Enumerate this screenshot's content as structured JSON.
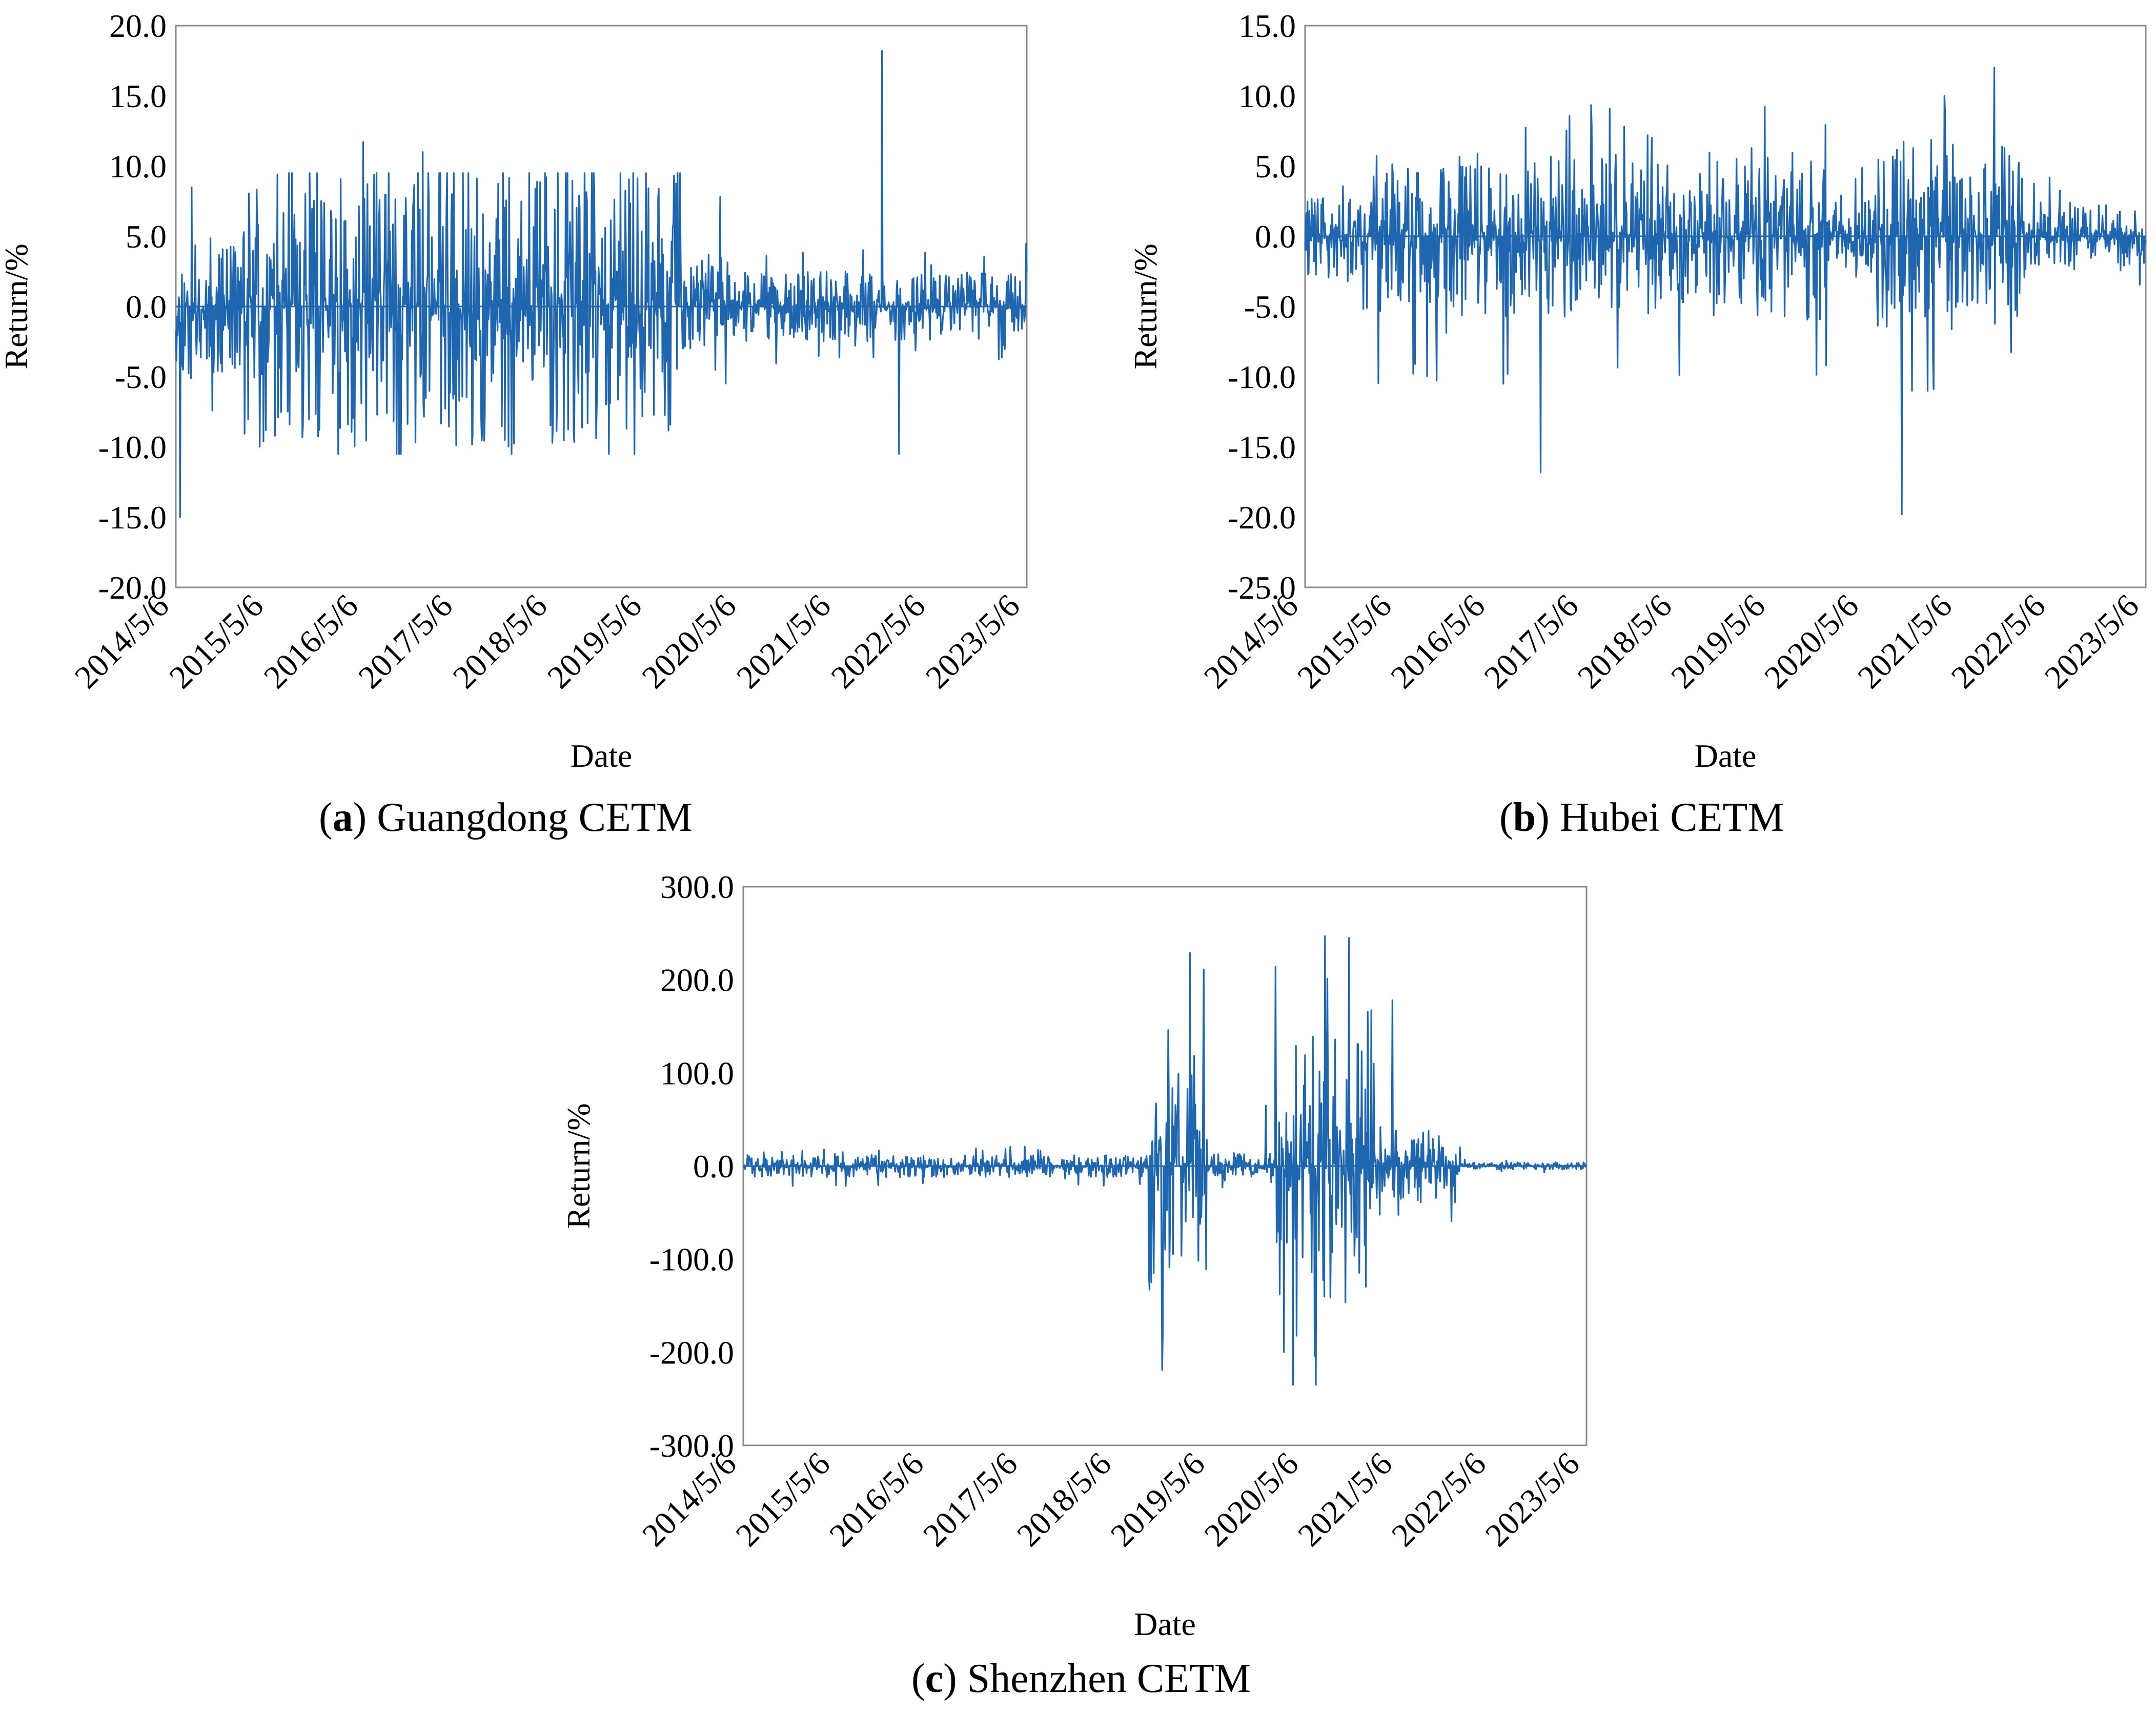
{
  "figure": {
    "panels_count": 3
  },
  "chart_data": [
    {
      "id": "a",
      "type": "line",
      "title": "Guangdong CETM",
      "caption_letter": "a",
      "xlabel": "Date",
      "ylabel": "Return/%",
      "ylim": [
        -20,
        20
      ],
      "yticks": [
        -20,
        -15,
        -10,
        -5,
        0,
        5,
        10,
        15,
        20
      ],
      "ytick_labels": [
        "-20.0",
        "-15.0",
        "-10.0",
        "-5.0",
        "0.0",
        "5.0",
        "10.0",
        "15.0",
        "20.0"
      ],
      "xticks": [
        "2014/5/6",
        "2015/5/6",
        "2016/5/6",
        "2017/5/6",
        "2018/5/6",
        "2019/5/6",
        "2020/5/6",
        "2021/5/6",
        "2022/5/6",
        "2023/5/6"
      ],
      "color": "#1f66b0",
      "series": [
        {
          "name": "Guangdong CETM return",
          "regimes": [
            {
              "from": 0.0,
              "to": 0.08,
              "amp": 5,
              "lo": -10.5,
              "hi": 9.5
            },
            {
              "from": 0.08,
              "to": 0.6,
              "amp": 10,
              "lo": -10.5,
              "hi": 9.5
            },
            {
              "from": 0.6,
              "to": 0.65,
              "amp": 3.5,
              "lo": -6,
              "hi": 6
            },
            {
              "from": 0.65,
              "to": 1.0,
              "amp": 2.5,
              "lo": -6,
              "hi": 4.5
            }
          ],
          "spikes": [
            {
              "x": 0.005,
              "y": -15.0
            },
            {
              "x": 0.22,
              "y": 11.7
            },
            {
              "x": 0.29,
              "y": 11.0
            },
            {
              "x": 0.64,
              "y": 7.8
            },
            {
              "x": 0.83,
              "y": 18.2
            },
            {
              "x": 0.85,
              "y": -10.5
            }
          ]
        }
      ]
    },
    {
      "id": "b",
      "type": "line",
      "title": "Hubei CETM",
      "caption_letter": "b",
      "xlabel": "Date",
      "ylabel": "Return/%",
      "ylim": [
        -25,
        15
      ],
      "yticks": [
        -25,
        -20,
        -15,
        -10,
        -5,
        0,
        5,
        10,
        15
      ],
      "ytick_labels": [
        "-25.0",
        "-20.0",
        "-15.0",
        "-10.0",
        "-5.0",
        "0.0",
        "5.0",
        "10.0",
        "15.0"
      ],
      "xticks": [
        "2014/5/6",
        "2015/5/6",
        "2016/5/6",
        "2017/5/6",
        "2018/5/6",
        "2019/5/6",
        "2020/5/6",
        "2021/5/6",
        "2022/5/6",
        "2023/5/6"
      ],
      "color": "#1f66b0",
      "series": [
        {
          "name": "Hubei CETM return",
          "regimes": [
            {
              "from": 0.0,
              "to": 0.08,
              "amp": 3,
              "lo": -6,
              "hi": 9
            },
            {
              "from": 0.08,
              "to": 0.62,
              "amp": 6,
              "lo": -10.5,
              "hi": 9.5
            },
            {
              "from": 0.62,
              "to": 0.68,
              "amp": 3,
              "lo": -6,
              "hi": 6
            },
            {
              "from": 0.68,
              "to": 0.85,
              "amp": 7,
              "lo": -11,
              "hi": 10
            },
            {
              "from": 0.85,
              "to": 1.0,
              "amp": 2.5,
              "lo": -7,
              "hi": 7
            }
          ],
          "spikes": [
            {
              "x": 0.28,
              "y": -16.8
            },
            {
              "x": 0.71,
              "y": -19.8
            },
            {
              "x": 0.82,
              "y": 12.0
            }
          ]
        }
      ]
    },
    {
      "id": "c",
      "type": "line",
      "title": "Shenzhen CETM",
      "caption_letter": "c",
      "xlabel": "Date",
      "ylabel": "Return/%",
      "ylim": [
        -300,
        300
      ],
      "yticks": [
        -300,
        -200,
        -100,
        0,
        100,
        200,
        300
      ],
      "ytick_labels": [
        "-300.0",
        "-200.0",
        "-100.0",
        "0.0",
        "100.0",
        "200.0",
        "300.0"
      ],
      "xticks": [
        "2014/5/6",
        "2015/5/6",
        "2016/5/6",
        "2017/5/6",
        "2018/5/6",
        "2019/5/6",
        "2020/5/6",
        "2021/5/6",
        "2022/5/6",
        "2023/5/6"
      ],
      "color": "#1f66b0",
      "series": [
        {
          "name": "Shenzhen CETM return",
          "regimes": [
            {
              "from": 0.0,
              "to": 0.48,
              "amp": 12,
              "lo": -50,
              "hi": 50
            },
            {
              "from": 0.48,
              "to": 0.55,
              "amp": 150,
              "lo": -225,
              "hi": 230
            },
            {
              "from": 0.55,
              "to": 0.63,
              "amp": 15,
              "lo": -50,
              "hi": 60
            },
            {
              "from": 0.63,
              "to": 0.75,
              "amp": 150,
              "lo": -235,
              "hi": 245
            },
            {
              "from": 0.75,
              "to": 0.85,
              "amp": 40,
              "lo": -70,
              "hi": 70
            },
            {
              "from": 0.85,
              "to": 1.0,
              "amp": 4,
              "lo": -10,
              "hi": 10
            }
          ],
          "spikes": [
            {
              "x": 0.53,
              "y": 229
            },
            {
              "x": 0.53,
              "y": -225
            },
            {
              "x": 0.62,
              "y": 65
            },
            {
              "x": 0.69,
              "y": 247
            },
            {
              "x": 0.69,
              "y": -236
            },
            {
              "x": 0.77,
              "y": 178
            }
          ]
        }
      ]
    }
  ]
}
